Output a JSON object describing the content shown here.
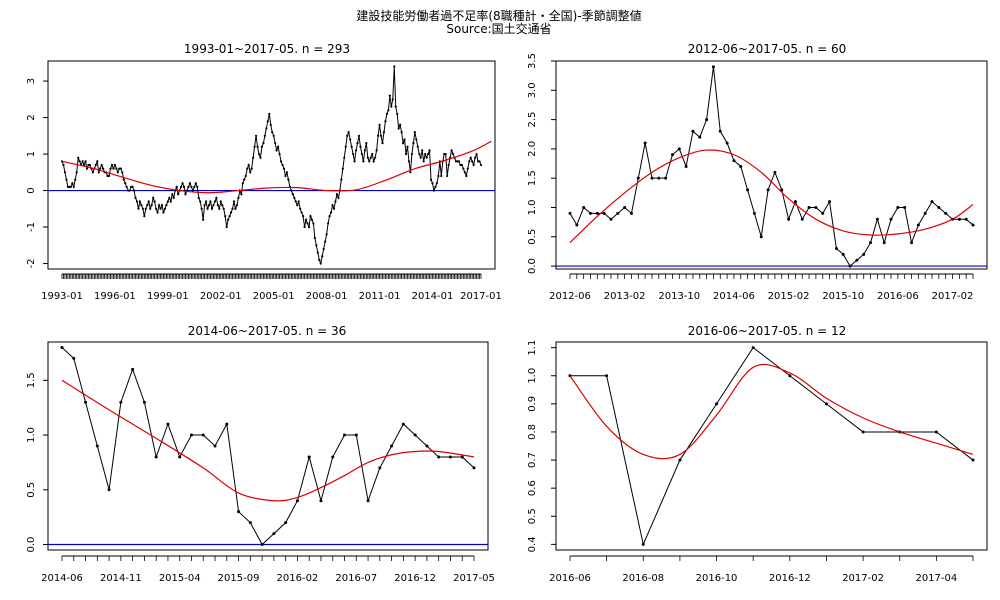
{
  "figure": {
    "title": "建設技能労働者過不足率(8職種計・全国)-季節調整値",
    "subtitle": "Source:国土交通省"
  },
  "chart_data": [
    {
      "type": "line",
      "title": "1993-01~2017-05. n = 293",
      "x_ticks": [
        "1993-01",
        "1996-01",
        "1999-01",
        "2002-01",
        "2005-01",
        "2008-01",
        "2011-01",
        "2014-01",
        "2017-01"
      ],
      "y_ticks": [
        "-2",
        "-1",
        "0",
        "1",
        "2",
        "3"
      ],
      "ylim": [
        -2.15,
        3.55
      ],
      "reference_line": 0,
      "series": [
        {
          "name": "",
          "color": "#000000",
          "values": [
            0.8,
            0.7,
            0.5,
            0.3,
            0.1,
            0.1,
            0.1,
            0.2,
            0.1,
            0.3,
            0.5,
            0.9,
            0.8,
            0.7,
            0.8,
            0.7,
            0.8,
            0.6,
            0.7,
            0.7,
            0.6,
            0.5,
            0.6,
            0.7,
            0.8,
            0.5,
            0.6,
            0.7,
            0.6,
            0.5,
            0.5,
            0.4,
            0.4,
            0.6,
            0.7,
            0.6,
            0.7,
            0.6,
            0.5,
            0.6,
            0.6,
            0.5,
            0.3,
            0.2,
            0.1,
            0.0,
            0.0,
            0.1,
            0.1,
            0.0,
            -0.2,
            -0.3,
            -0.5,
            -0.3,
            -0.4,
            -0.5,
            -0.7,
            -0.5,
            -0.4,
            -0.3,
            -0.5,
            -0.4,
            -0.2,
            -0.3,
            -0.5,
            -0.6,
            -0.4,
            -0.5,
            -0.4,
            -0.6,
            -0.5,
            -0.4,
            -0.3,
            -0.2,
            -0.3,
            -0.1,
            -0.2,
            0.0,
            0.1,
            -0.1,
            0.0,
            0.1,
            0.2,
            0.1,
            -0.1,
            0.0,
            0.1,
            0.2,
            0.1,
            0.0,
            0.1,
            0.2,
            0.1,
            -0.2,
            -0.3,
            -0.5,
            -0.8,
            -0.4,
            -0.3,
            -0.5,
            -0.4,
            -0.3,
            -0.5,
            -0.4,
            -0.3,
            -0.2,
            -0.4,
            -0.5,
            -0.3,
            -0.4,
            -0.5,
            -0.7,
            -1.0,
            -0.8,
            -0.7,
            -0.6,
            -0.5,
            -0.3,
            -0.5,
            -0.4,
            -0.2,
            0.0,
            -0.1,
            0.2,
            0.3,
            0.4,
            0.6,
            0.7,
            0.5,
            0.6,
            0.9,
            1.2,
            1.5,
            1.2,
            1.0,
            0.9,
            1.2,
            1.3,
            1.5,
            1.7,
            1.9,
            2.1,
            1.8,
            1.6,
            1.5,
            1.3,
            1.1,
            1.2,
            1.0,
            0.8,
            0.7,
            0.6,
            0.4,
            0.5,
            0.3,
            0.1,
            0.0,
            -0.1,
            -0.2,
            -0.3,
            -0.4,
            -0.3,
            -0.5,
            -0.6,
            -0.7,
            -1.0,
            -0.8,
            -0.9,
            -1.0,
            -0.7,
            -0.8,
            -0.9,
            -1.3,
            -1.5,
            -1.7,
            -1.9,
            -2.0,
            -1.8,
            -1.6,
            -1.4,
            -1.2,
            -0.9,
            -0.7,
            -0.6,
            -0.4,
            -0.5,
            -0.3,
            -0.1,
            -0.2,
            0.0,
            0.3,
            0.6,
            0.9,
            1.2,
            1.5,
            1.6,
            1.4,
            1.2,
            1.0,
            0.8,
            1.1,
            1.3,
            1.5,
            1.2,
            1.0,
            0.8,
            1.1,
            1.3,
            0.9,
            0.8,
            0.9,
            1.0,
            0.8,
            0.9,
            1.1,
            1.5,
            1.8,
            1.5,
            1.3,
            1.6,
            1.9,
            2.1,
            2.2,
            2.6,
            2.3,
            2.5,
            3.4,
            2.3,
            2.1,
            1.7,
            1.8,
            1.6,
            1.3,
            1.4,
            1.0,
            1.2,
            0.8,
            0.5,
            1.0,
            1.3,
            1.6,
            1.4,
            1.2,
            1.0,
            0.9,
            1.1,
            0.8,
            1.0,
            0.9,
            1.0,
            1.1,
            0.3,
            0.2,
            0.0,
            0.1,
            0.2,
            0.4,
            0.8,
            0.4,
            0.8,
            1.0,
            1.0,
            0.4,
            0.7,
            0.9,
            1.1,
            1.0,
            0.9,
            0.8,
            0.8,
            0.8,
            0.7,
            0.7,
            0.6,
            0.5,
            0.4,
            0.6,
            0.8,
            0.9,
            0.8,
            0.7,
            0.9,
            1.0,
            0.8,
            0.8,
            0.7
          ]
        },
        {
          "name": "",
          "color": "#dd0000",
          "x": [
            0,
            20,
            40,
            60,
            80,
            100,
            120,
            140,
            160,
            180,
            200,
            220,
            240,
            260,
            280,
            292
          ],
          "values": [
            0.8,
            0.62,
            0.38,
            0.15,
            0.0,
            -0.06,
            0.0,
            0.07,
            0.08,
            0.0,
            0.02,
            0.28,
            0.6,
            0.82,
            1.1,
            1.35
          ]
        }
      ]
    },
    {
      "type": "line",
      "title": "2012-06~2017-05. n = 60",
      "x_ticks": [
        "2012-06",
        "2013-02",
        "2013-10",
        "2014-06",
        "2015-02",
        "2015-10",
        "2016-06",
        "2017-02"
      ],
      "y_ticks": [
        "0.0",
        "0.5",
        "1.0",
        "1.5",
        "2.0",
        "2.5",
        "3.0",
        "3.5"
      ],
      "ylim": [
        -0.05,
        3.5
      ],
      "reference_line": 0,
      "series": [
        {
          "name": "",
          "color": "#000000",
          "values": [
            0.9,
            0.7,
            1.0,
            0.9,
            0.9,
            0.9,
            0.8,
            0.9,
            1.0,
            0.9,
            1.5,
            2.1,
            1.5,
            1.5,
            1.5,
            1.9,
            2.0,
            1.7,
            2.3,
            2.2,
            2.5,
            3.4,
            2.3,
            2.1,
            1.8,
            1.7,
            1.3,
            0.9,
            0.5,
            1.3,
            1.6,
            1.3,
            0.8,
            1.1,
            0.8,
            1.0,
            1.0,
            0.9,
            1.1,
            0.3,
            0.2,
            0.0,
            0.1,
            0.2,
            0.4,
            0.8,
            0.4,
            0.8,
            1.0,
            1.0,
            0.4,
            0.7,
            0.9,
            1.1,
            1.0,
            0.9,
            0.8,
            0.8,
            0.8,
            0.7
          ]
        },
        {
          "name": "",
          "color": "#dd0000",
          "x": [
            0,
            4,
            8,
            12,
            16,
            20,
            24,
            28,
            32,
            36,
            40,
            44,
            48,
            52,
            56,
            59
          ],
          "values": [
            0.4,
            0.85,
            1.25,
            1.6,
            1.85,
            1.98,
            1.9,
            1.6,
            1.15,
            0.8,
            0.6,
            0.53,
            0.55,
            0.63,
            0.8,
            1.05
          ]
        }
      ]
    },
    {
      "type": "line",
      "title": "2014-06~2017-05. n = 36",
      "x_ticks": [
        "2014-06",
        "2014-11",
        "2015-04",
        "2015-09",
        "2016-02",
        "2016-07",
        "2016-12",
        "2017-05"
      ],
      "y_ticks": [
        "0.0",
        "0.5",
        "1.0",
        "1.5"
      ],
      "ylim": [
        -0.05,
        1.85
      ],
      "reference_line": 0,
      "series": [
        {
          "name": "",
          "color": "#000000",
          "values": [
            1.8,
            1.7,
            1.3,
            0.9,
            0.5,
            1.3,
            1.6,
            1.3,
            0.8,
            1.1,
            0.8,
            1.0,
            1.0,
            0.9,
            1.1,
            0.3,
            0.2,
            0.0,
            0.1,
            0.2,
            0.4,
            0.8,
            0.4,
            0.8,
            1.0,
            1.0,
            0.4,
            0.7,
            0.9,
            1.1,
            1.0,
            0.9,
            0.8,
            0.8,
            0.8,
            0.7
          ]
        },
        {
          "name": "",
          "color": "#dd0000",
          "x": [
            0,
            4,
            8,
            12,
            15,
            18,
            20,
            22,
            24,
            26,
            28,
            30,
            32,
            35
          ],
          "values": [
            1.5,
            1.23,
            0.97,
            0.7,
            0.47,
            0.4,
            0.43,
            0.52,
            0.63,
            0.75,
            0.82,
            0.85,
            0.85,
            0.8
          ]
        }
      ]
    },
    {
      "type": "line",
      "title": "2016-06~2017-05. n = 12",
      "x_ticks": [
        "2016-06",
        "2016-08",
        "2016-10",
        "2016-12",
        "2017-02",
        "2017-04"
      ],
      "y_ticks": [
        "0.4",
        "0.5",
        "0.6",
        "0.7",
        "0.8",
        "0.9",
        "1.0",
        "1.1"
      ],
      "ylim": [
        0.38,
        1.12
      ],
      "reference_line": null,
      "series": [
        {
          "name": "",
          "color": "#000000",
          "values": [
            1.0,
            1.0,
            0.4,
            0.7,
            0.9,
            1.1,
            1.0,
            0.9,
            0.8,
            0.8,
            0.8,
            0.7
          ]
        },
        {
          "name": "",
          "color": "#dd0000",
          "x": [
            0,
            1,
            2,
            3,
            4,
            5,
            6,
            7,
            8,
            9,
            10,
            11
          ],
          "values": [
            1.0,
            0.82,
            0.72,
            0.72,
            0.86,
            1.03,
            1.01,
            0.92,
            0.85,
            0.8,
            0.76,
            0.72
          ]
        }
      ]
    }
  ]
}
